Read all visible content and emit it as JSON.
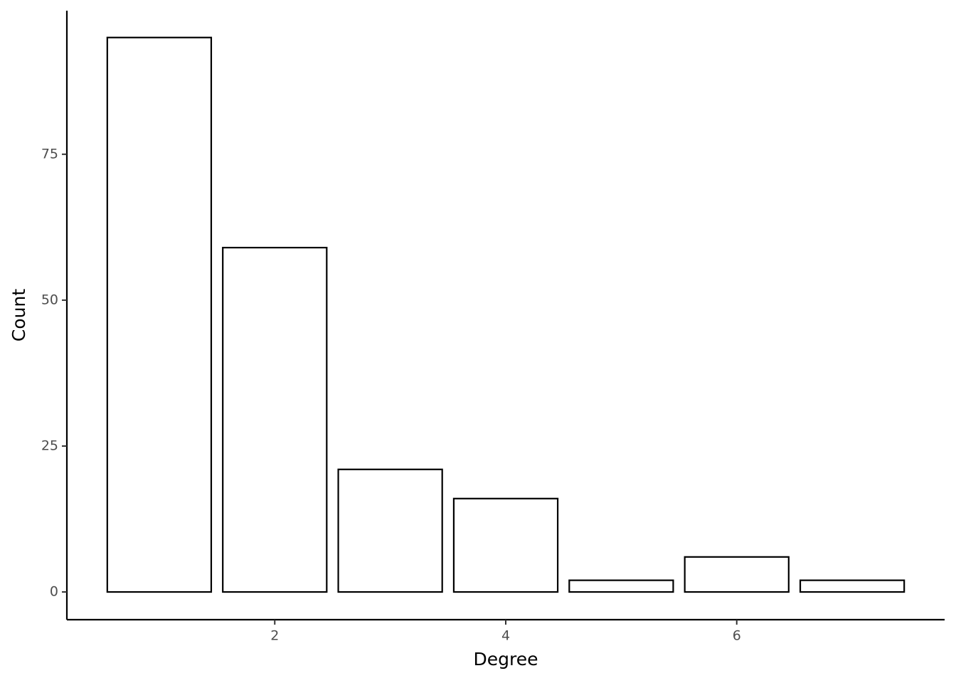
{
  "chart_data": {
    "type": "bar",
    "x_label": "Degree",
    "y_label": "Count",
    "x": [
      1,
      2,
      3,
      4,
      5,
      6,
      7
    ],
    "values": [
      95,
      59,
      21,
      16,
      2,
      6,
      2
    ],
    "color": "#ffffff",
    "edge_color": "#000000",
    "xlim": [
      0.2,
      7.8
    ],
    "xticks": [
      2,
      4,
      6
    ],
    "ylim": [
      -4.75,
      99.6
    ],
    "yticks": [
      0,
      25,
      50,
      75
    ],
    "grid": false
  }
}
